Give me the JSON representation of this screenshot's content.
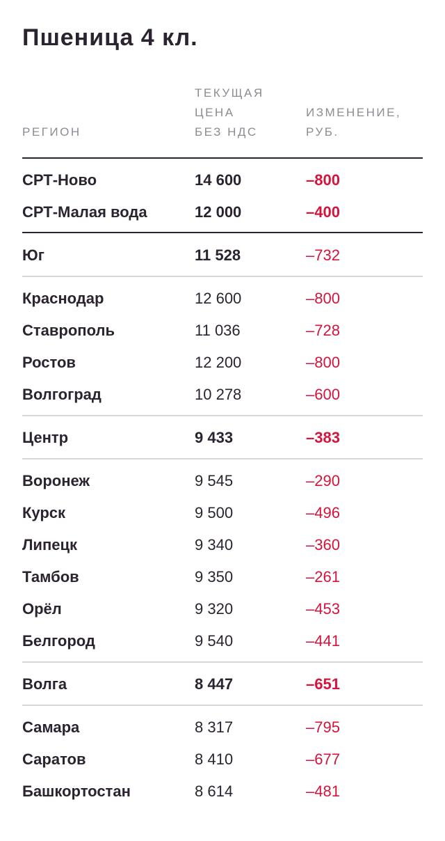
{
  "title": "Пшеница 4 кл.",
  "columns": {
    "region": "РЕГИОН",
    "price": "ТЕКУЩАЯ\nЦЕНА\nБЕЗ НДС",
    "change": "ИЗМЕНЕНИЕ,\nРУБ."
  },
  "colors": {
    "text": "#2b2430",
    "header": "#8f8a93",
    "negative": "#d4143c",
    "rule_dark": "#2b2430",
    "rule_light": "#d8d6da"
  },
  "rows": [
    {
      "region": "СРТ-Ново",
      "price": "14 600",
      "change": "–800",
      "bold": true
    },
    {
      "region": "СРТ-Малая вода",
      "price": "12 000",
      "change": "–400",
      "bold": true
    },
    {
      "region": "Юг",
      "price": "11 528",
      "change": "–732",
      "bold_price": true
    },
    {
      "region": "Краснодар",
      "price": "12 600",
      "change": "–800"
    },
    {
      "region": "Ставрополь",
      "price": "11 036",
      "change": "–728"
    },
    {
      "region": "Ростов",
      "price": "12 200",
      "change": "–800"
    },
    {
      "region": "Волгоград",
      "price": "10 278",
      "change": "–600"
    },
    {
      "region": "Центр",
      "price": "9 433",
      "change": "–383",
      "bold": true
    },
    {
      "region": "Воронеж",
      "price": "9 545",
      "change": "–290"
    },
    {
      "region": "Курск",
      "price": "9 500",
      "change": "–496"
    },
    {
      "region": "Липецк",
      "price": "9 340",
      "change": "–360"
    },
    {
      "region": "Тамбов",
      "price": "9 350",
      "change": "–261"
    },
    {
      "region": "Орёл",
      "price": "9 320",
      "change": "–453"
    },
    {
      "region": "Белгород",
      "price": "9 540",
      "change": "–441"
    },
    {
      "region": "Волга",
      "price": "8 447",
      "change": "–651",
      "bold": true
    },
    {
      "region": "Самара",
      "price": "8 317",
      "change": "–795"
    },
    {
      "region": "Саратов",
      "price": "8 410",
      "change": "–677"
    },
    {
      "region": "Башкортостан",
      "price": "8 614",
      "change": "–481"
    }
  ]
}
